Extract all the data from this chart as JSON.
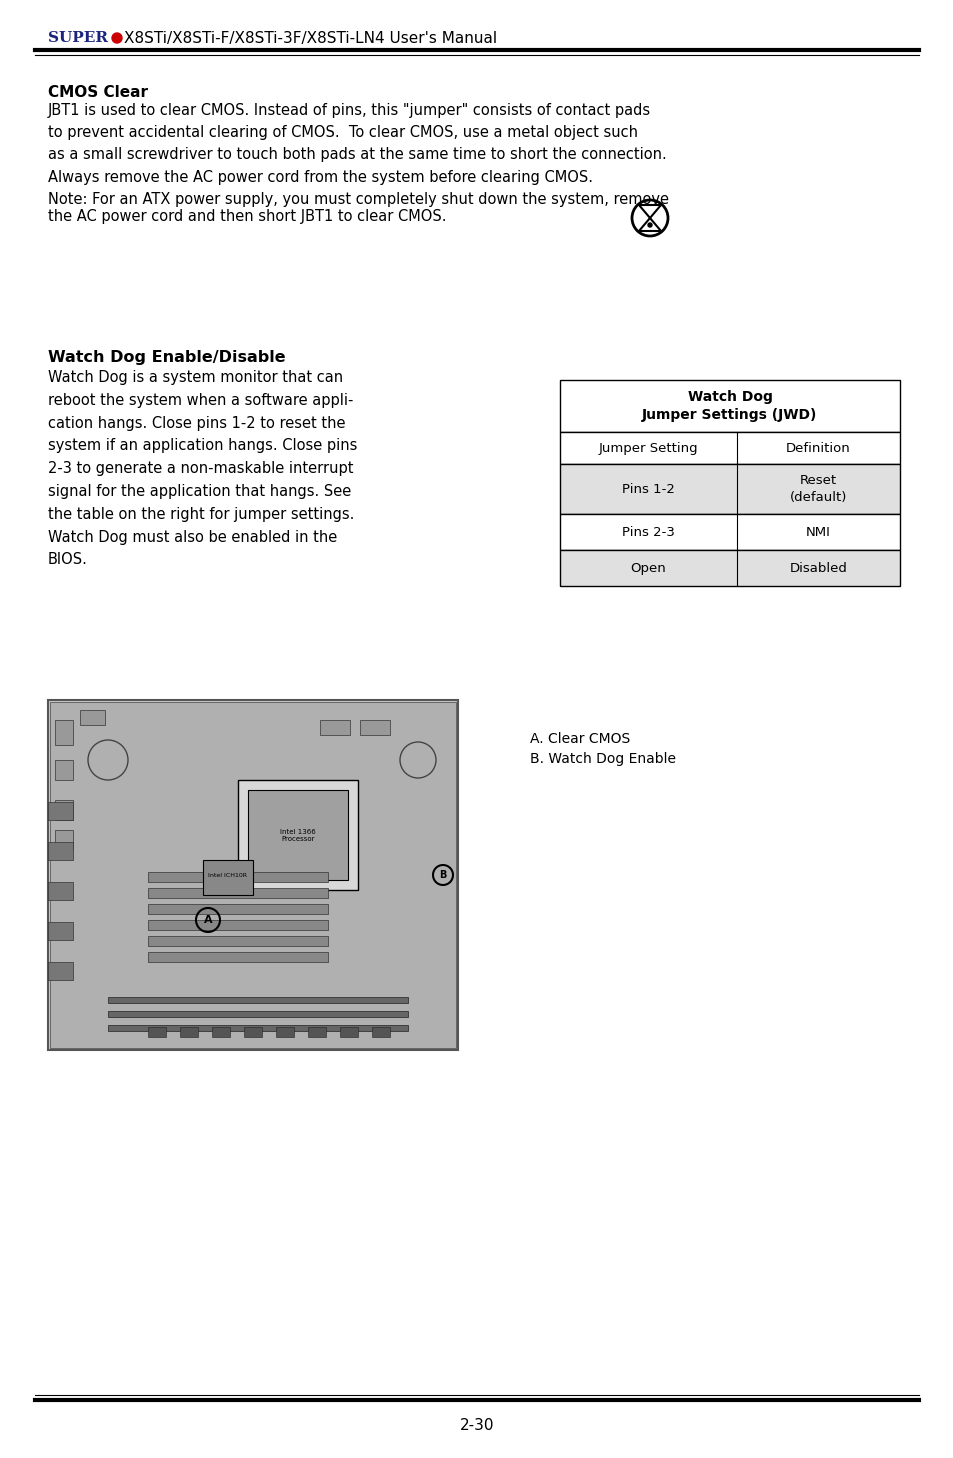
{
  "title_super": "SUPER",
  "title_rest": "●X8STi/X8STi-F/X8STi-3F/X8STi-LN4 User's Manual",
  "page_number": "2-30",
  "cmos_clear_heading": "CMOS Clear",
  "cmos_clear_body": "JBT1 is used to clear CMOS. Instead of pins, this \"jumper\" consists of contact pads\nto prevent accidental clearing of CMOS.  To clear CMOS, use a metal object such\nas a small screwdriver to touch both pads at the same time to short the connection.\nAlways remove the AC power cord from the system before clearing CMOS.",
  "note_text": "Note: For an ATX power supply, you must completely shut down the system, remove\nthe AC power cord and then short JBT1 to clear CMOS.",
  "watch_dog_heading": "Watch Dog Enable/Disable",
  "watch_dog_body": "Watch Dog is a system monitor that can\nreboot the system when a software appli-\ncation hangs. Close pins 1-2 to reset the\nsystem if an application hangs. Close pins\n2-3 to generate a non-maskable interrupt\nsignal for the application that hangs. See\nthe table on the right for jumper settings.\nWatch Dog must also be enabled in the\nBIOS.",
  "table_title": "Watch Dog\nJumper Settings (JWD)",
  "table_header": [
    "Jumper Setting",
    "Definition"
  ],
  "table_rows": [
    [
      "Pins 1-2",
      "Reset\n(default)"
    ],
    [
      "Pins 2-3",
      "NMI"
    ],
    [
      "Open",
      "Disabled"
    ]
  ],
  "table_row_shaded": [
    true,
    false,
    true
  ],
  "diagram_labels": [
    "A. Clear CMOS",
    "B. Watch Dog Enable"
  ],
  "bg_color": "#ffffff",
  "header_line_color": "#000000",
  "super_color": "#1a237e",
  "dot_color": "#cc0000",
  "table_shade": "#e0e0e0",
  "table_border": "#000000"
}
